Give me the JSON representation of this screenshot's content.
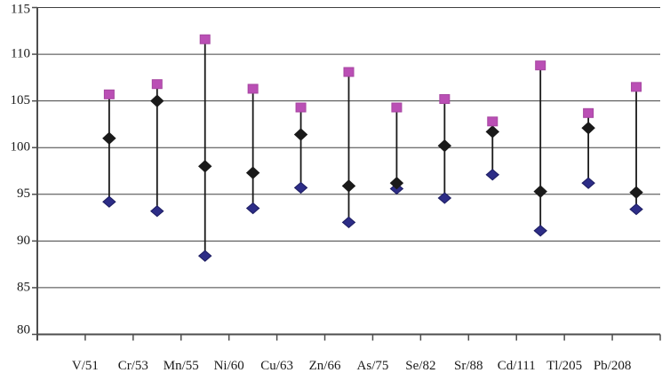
{
  "chart_data": {
    "type": "scatter",
    "variant": "high-low-range-lines",
    "title": "",
    "xlabel": "",
    "ylabel": "",
    "categories": [
      "V/51",
      "Cr/53",
      "Mn/55",
      "Ni/60",
      "Cu/63",
      "Zn/66",
      "As/75",
      "Se/82",
      "Sr/88",
      "Cd/111",
      "Tl/205",
      "Pb/208"
    ],
    "series": [
      {
        "name": "high",
        "marker": "square",
        "color": "#ba4fb5",
        "values": [
          105.7,
          106.8,
          111.6,
          106.3,
          104.3,
          108.1,
          104.3,
          105.2,
          102.8,
          108.8,
          103.7,
          106.5
        ]
      },
      {
        "name": "mid",
        "marker": "diamond",
        "color": "#1a1a1a",
        "values": [
          101.0,
          105.0,
          98.0,
          97.3,
          101.4,
          95.9,
          96.2,
          100.2,
          101.7,
          95.3,
          102.1,
          95.2
        ]
      },
      {
        "name": "low",
        "marker": "diamond",
        "color": "#2d2d87",
        "values": [
          94.2,
          93.2,
          88.4,
          93.5,
          95.7,
          92.0,
          95.6,
          94.6,
          97.1,
          91.1,
          96.2,
          93.4
        ]
      }
    ],
    "range_line_color": "#1a1a1a",
    "ylim": [
      80,
      115
    ],
    "yticks": [
      80,
      85,
      90,
      95,
      100,
      105,
      110,
      115
    ],
    "grid": "horizontal",
    "gridline_color": "#404040",
    "axis_color": "#4d4d4d",
    "legend": "none",
    "plot_background": "#ffffff"
  }
}
